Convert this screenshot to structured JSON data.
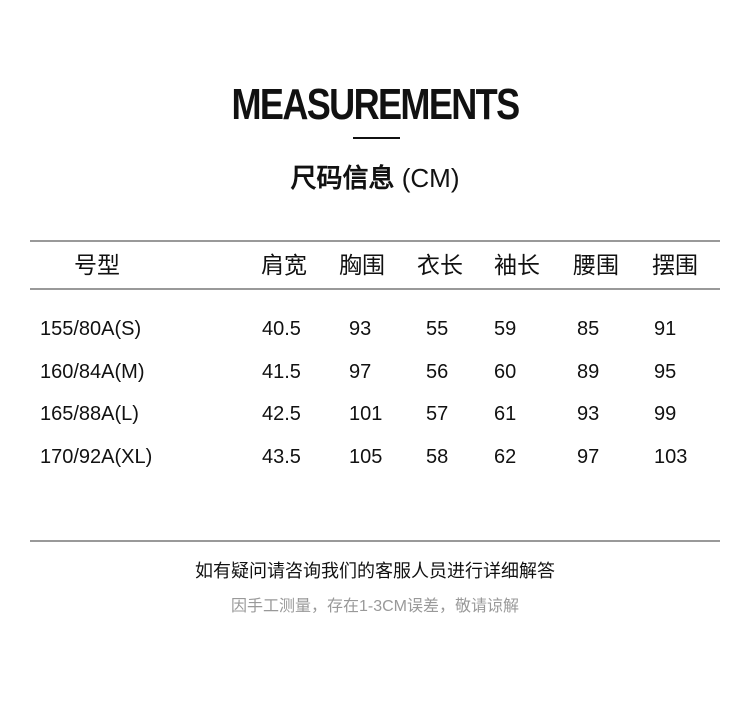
{
  "title": "MEASUREMENTS",
  "subtitle": {
    "text": "尺码信息",
    "unit": "(CM)"
  },
  "table": {
    "headers": [
      "号型",
      "肩宽",
      "胸围",
      "衣长",
      "袖长",
      "腰围",
      "摆围"
    ],
    "rows": [
      [
        "155/80A(S)",
        "40.5",
        "93",
        "55",
        "59",
        "85",
        "91"
      ],
      [
        "160/84A(M)",
        "41.5",
        "97",
        "56",
        "60",
        "89",
        "95"
      ],
      [
        "165/88A(L)",
        "42.5",
        "101",
        "57",
        "61",
        "93",
        "99"
      ],
      [
        "170/92A(XL)",
        "43.5",
        "105",
        "58",
        "62",
        "97",
        "103"
      ]
    ]
  },
  "notes": {
    "contact": "如有疑问请咨询我们的客服人员进行详细解答",
    "disclaimer": "因手工测量，存在1-3CM误差，敬请谅解"
  },
  "colors": {
    "text": "#111111",
    "rule": "#999999",
    "muted": "#999999"
  }
}
